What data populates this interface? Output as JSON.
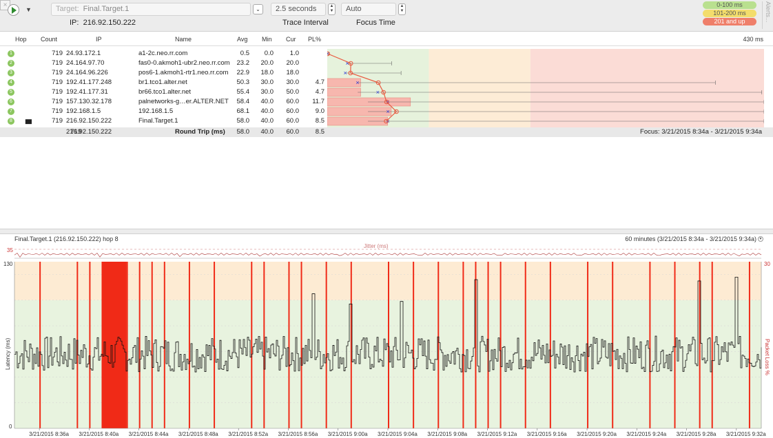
{
  "toolbar": {
    "target_label": "Target:",
    "target_value": "Final.Target.1",
    "ip_label": "IP:",
    "ip_value": "216.92.150.222",
    "interval_value": "2.5 seconds",
    "interval_label": "Trace Interval",
    "focus_value": "Auto",
    "focus_label": "Focus Time",
    "alerts_label": "Alerts...",
    "legend": [
      {
        "label": "0-100 ms",
        "color": "#b9e08f"
      },
      {
        "label": "101-200 ms",
        "color": "#f3dd6c"
      },
      {
        "label": "201 and up",
        "color": "#ef7f6a"
      }
    ]
  },
  "hop_table": {
    "columns": {
      "hop": "Hop",
      "count": "Count",
      "ip": "IP",
      "name": "Name",
      "avg": "Avg",
      "min": "Min",
      "cur": "Cur",
      "pl": "PL%"
    },
    "graph_max_label": "430 ms",
    "rows": [
      {
        "hop": "1",
        "count": "719",
        "ip": "24.93.172.1",
        "name": "a1-2c.neo.rr.com",
        "avg": "0.5",
        "min": "0.0",
        "cur": "1.0",
        "pl": ""
      },
      {
        "hop": "2",
        "count": "719",
        "ip": "24.164.97.70",
        "name": "fas0-0.akmoh1-ubr2.neo.rr.com",
        "avg": "23.2",
        "min": "20.0",
        "cur": "20.0",
        "pl": ""
      },
      {
        "hop": "3",
        "count": "719",
        "ip": "24.164.96.226",
        "name": "pos6-1.akmoh1-rtr1.neo.rr.com",
        "avg": "22.9",
        "min": "18.0",
        "cur": "18.0",
        "pl": ""
      },
      {
        "hop": "4",
        "count": "719",
        "ip": "192.41.177.248",
        "name": "br1.tco1.alter.net",
        "avg": "50.3",
        "min": "30.0",
        "cur": "30.0",
        "pl": "4.7"
      },
      {
        "hop": "5",
        "count": "719",
        "ip": "192.41.177.31",
        "name": "br66.tco1.alter.net",
        "avg": "55.4",
        "min": "30.0",
        "cur": "50.0",
        "pl": "4.7"
      },
      {
        "hop": "6",
        "count": "719",
        "ip": "157.130.32.178",
        "name": "palnetworks-g…er.ALTER.NET",
        "avg": "58.4",
        "min": "40.0",
        "cur": "60.0",
        "pl": "11.7"
      },
      {
        "hop": "7",
        "count": "719",
        "ip": "192.168.1.5",
        "name": "192.168.1.5",
        "avg": "68.1",
        "min": "40.0",
        "cur": "60.0",
        "pl": "9.0"
      },
      {
        "hop": "8",
        "count": "719",
        "ip": "216.92.150.222",
        "name": "Final.Target.1",
        "avg": "58.0",
        "min": "40.0",
        "cur": "60.0",
        "pl": "8.5"
      }
    ],
    "round_trip": {
      "count": "719",
      "ip": "216.92.150.222",
      "label": "Round Trip (ms)",
      "avg": "58.0",
      "min": "40.0",
      "cur": "60.0",
      "pl": "8.5",
      "focus": "Focus: 3/21/2015 8:34a - 3/21/2015 9:34a"
    }
  },
  "graph_panel": {
    "title": "Final.Target.1 (216.92.150.222) hop 8",
    "range": "60 minutes (3/21/2015 8:34a - 3/21/2015 9:34a)",
    "jitter_label": "Jitter (ms)",
    "jitter_max": "35",
    "y_left_label": "Latency (ms)",
    "y_right_label": "Packet Loss %",
    "y_left_max": "130",
    "y_left_min": "0",
    "y_right_max": "30",
    "x_ticks": [
      "3/21/2015 8:36a",
      "3/21/2015 8:40a",
      "3/21/2015 8:44a",
      "3/21/2015 8:48a",
      "3/21/2015 8:52a",
      "3/21/2015 8:56a",
      "3/21/2015 9:00a",
      "3/21/2015 9:04a",
      "3/21/2015 9:08a",
      "3/21/2015 9:12a",
      "3/21/2015 9:16a",
      "3/21/2015 9:20a",
      "3/21/2015 9:24a",
      "3/21/2015 9:28a",
      "3/21/2015 9:32a"
    ]
  },
  "chart_data": {
    "type": "line",
    "title": "Final.Target.1 (216.92.150.222) hop 8",
    "xlabel": "",
    "ylabel": "Latency (ms)",
    "ylabel_right": "Packet Loss %",
    "ylim": [
      0,
      130
    ],
    "ylim_right": [
      0,
      30
    ],
    "zones": [
      {
        "from": 0,
        "to": 100,
        "color": "#e8f3df"
      },
      {
        "from": 100,
        "to": 130,
        "color": "#fdebd3"
      }
    ],
    "latency_baseline_ms": 58,
    "latency_spikes": [
      {
        "time": "8:58a",
        "value": 105
      },
      {
        "time": "9:01a",
        "value": 97
      },
      {
        "time": "9:05a",
        "value": 99
      },
      {
        "time": "9:11a",
        "value": 116
      },
      {
        "time": "9:29a",
        "value": 115
      },
      {
        "time": "9:32a",
        "value": 118
      }
    ],
    "loss_events": [
      "8:36a",
      "8:39a",
      "8:40a",
      "8:43a",
      "8:44a",
      "8:45a",
      "8:46a",
      "8:48a",
      "8:50a",
      "8:53a",
      "8:54a",
      "8:56a",
      "8:57a",
      "8:59a",
      "9:01a",
      "9:04a",
      "9:06a",
      "9:08a",
      "9:10a",
      "9:11a",
      "9:12a",
      "9:13a",
      "9:15a",
      "9:17a",
      "9:20a",
      "9:22a",
      "9:25a",
      "9:27a",
      "9:29a",
      "9:30a",
      "9:33a"
    ],
    "loss_burst": {
      "from": "8:41a",
      "to": "8:43a",
      "loss_pct": 100
    },
    "series": [
      {
        "name": "Jitter (ms)",
        "max": 35
      }
    ]
  },
  "colors": {
    "green_zone": "#e6f2dc",
    "orange_zone": "#fdecd6",
    "red_zone": "#fbdcd6",
    "loss": "#f02a17",
    "trace": "#e9583f"
  }
}
